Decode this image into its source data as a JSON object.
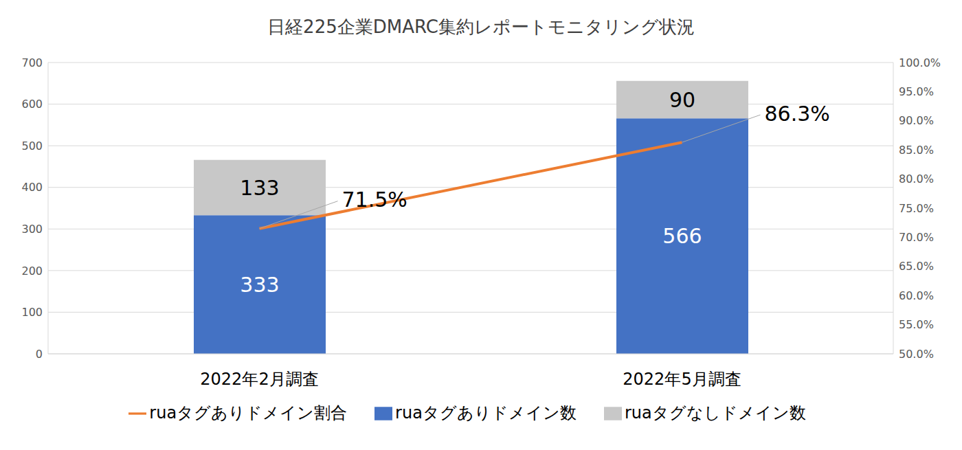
{
  "chart_data": {
    "type": "bar",
    "title": "日経225企業DMARC集約レポートモニタリング状況",
    "categories": [
      "2022年2月調査",
      "2022年5月調査"
    ],
    "series": [
      {
        "name": "ruaタグありドメイン数",
        "type": "bar",
        "color": "#4472c4",
        "values": [
          333,
          566
        ]
      },
      {
        "name": "ruaタグなしドメイン数",
        "type": "bar",
        "color": "#c8c8c8",
        "values": [
          133,
          90
        ]
      },
      {
        "name": "ruaタグありドメイン割合",
        "type": "line",
        "axis": "y2",
        "color": "#ed7d31",
        "values": [
          71.5,
          86.3
        ],
        "value_labels": [
          "71.5%",
          "86.3%"
        ]
      }
    ],
    "ylim": [
      0,
      700
    ],
    "yticks": [
      0,
      100,
      200,
      300,
      400,
      500,
      600,
      700
    ],
    "y2lim": [
      50,
      100
    ],
    "y2ticks": [
      {
        "value": 50,
        "label": "50.0%"
      },
      {
        "value": 55,
        "label": "55.0%"
      },
      {
        "value": 60,
        "label": "60.0%"
      },
      {
        "value": 65,
        "label": "65.0%"
      },
      {
        "value": 70,
        "label": "70.0%"
      },
      {
        "value": 75,
        "label": "75.0%"
      },
      {
        "value": 80,
        "label": "80.0%"
      },
      {
        "value": 85,
        "label": "85.0%"
      },
      {
        "value": 90,
        "label": "90.0%"
      },
      {
        "value": 95,
        "label": "95.0%"
      },
      {
        "value": 100,
        "label": "100.0%"
      }
    ],
    "stacked": true,
    "data_labels": true,
    "grid": true,
    "legend": "bottom"
  }
}
